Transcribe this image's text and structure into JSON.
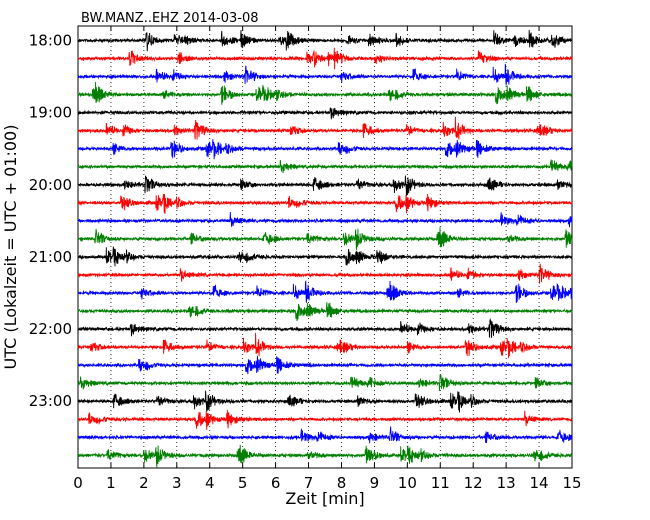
{
  "chart_data": {
    "type": "line",
    "title": "BW.MANZ..EHZ 2014-03-08",
    "xlabel": "Zeit  [min]",
    "ylabel": "UTC (Lokalzeit = UTC + 01:00)",
    "xlim": [
      0,
      15
    ],
    "x_ticks": [
      "0",
      "1",
      "2",
      "3",
      "4",
      "5",
      "6",
      "7",
      "8",
      "9",
      "10",
      "11",
      "12",
      "13",
      "14",
      "15"
    ],
    "y_ticks": [
      "18:00",
      "19:00",
      "20:00",
      "21:00",
      "22:00",
      "23:00"
    ],
    "trace_start": "18:00",
    "trace_interval_minutes": 15,
    "trace_count": 24,
    "colors": [
      "#000000",
      "#ff0000",
      "#0000ff",
      "#007f00"
    ],
    "grid": "vertical dotted lines at each minute"
  }
}
